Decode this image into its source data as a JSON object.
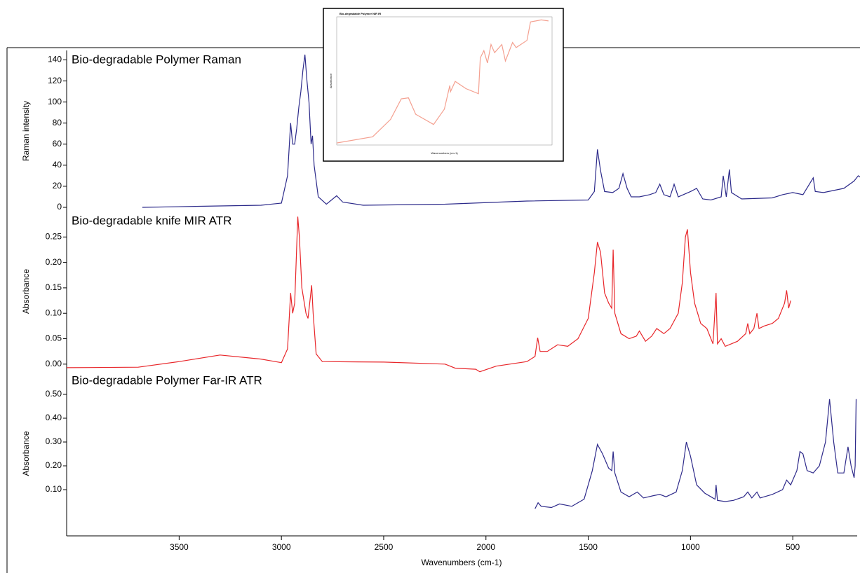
{
  "chart_data": [
    {
      "type": "line",
      "title": "Bio-degradable Polymer Raman",
      "y_label": "Raman intensity",
      "color": "#2c2a8a",
      "xlim": [
        4050,
        185
      ],
      "ylim": [
        -4,
        149
      ],
      "yticks": [
        0,
        20,
        40,
        60,
        80,
        100,
        120,
        140
      ],
      "x": [
        3680,
        3400,
        3100,
        3000,
        2970,
        2955,
        2945,
        2935,
        2925,
        2915,
        2905,
        2895,
        2885,
        2875,
        2865,
        2855,
        2848,
        2840,
        2820,
        2780,
        2730,
        2700,
        2600,
        2200,
        1800,
        1500,
        1470,
        1455,
        1440,
        1420,
        1380,
        1350,
        1330,
        1310,
        1290,
        1250,
        1200,
        1170,
        1150,
        1130,
        1100,
        1080,
        1060,
        1000,
        970,
        940,
        900,
        850,
        840,
        825,
        810,
        800,
        750,
        600,
        550,
        500,
        450,
        400,
        390,
        350,
        300,
        250,
        200,
        180,
        165,
        160,
        155
      ],
      "values": [
        0,
        1,
        2,
        4,
        30,
        80,
        60,
        60,
        75,
        95,
        110,
        130,
        145,
        120,
        100,
        60,
        68,
        40,
        10,
        3,
        11,
        5,
        2,
        3,
        6,
        7,
        15,
        55,
        35,
        15,
        14,
        18,
        32,
        18,
        10,
        10,
        12,
        14,
        22,
        12,
        10,
        22,
        10,
        15,
        18,
        8,
        7,
        10,
        30,
        10,
        36,
        14,
        8,
        9,
        12,
        14,
        12,
        28,
        15,
        14,
        16,
        18,
        25,
        30,
        28,
        30,
        -3
      ]
    },
    {
      "type": "line",
      "title": "Bio-degradable knife MIR ATR",
      "y_label": "Absorbance",
      "color": "#e8262a",
      "xlim": [
        4050,
        185
      ],
      "ylim": [
        -0.014,
        0.3
      ],
      "yticks": [
        {
          "value": 0,
          "label": "0.00"
        },
        {
          "value": 0.05,
          "label": "0.05"
        },
        {
          "value": 0.1,
          "label": "0.10"
        },
        {
          "value": 0.15,
          "label": "0.15"
        },
        {
          "value": 0.2,
          "label": "0.20"
        },
        {
          "value": 0.25,
          "label": "0.25"
        }
      ],
      "x": [
        4050,
        3700,
        3500,
        3300,
        3100,
        3000,
        2970,
        2955,
        2945,
        2935,
        2920,
        2912,
        2900,
        2880,
        2870,
        2852,
        2845,
        2830,
        2800,
        2500,
        2200,
        2150,
        2050,
        2030,
        1950,
        1800,
        1760,
        1747,
        1735,
        1700,
        1650,
        1600,
        1550,
        1500,
        1470,
        1455,
        1440,
        1420,
        1400,
        1385,
        1378,
        1370,
        1340,
        1300,
        1265,
        1250,
        1220,
        1190,
        1165,
        1130,
        1100,
        1060,
        1040,
        1025,
        1015,
        1000,
        980,
        950,
        920,
        890,
        875,
        868,
        850,
        830,
        800,
        770,
        730,
        720,
        710,
        690,
        675,
        665,
        640,
        600,
        570,
        540,
        530,
        520,
        510
      ],
      "values": [
        -0.007,
        -0.006,
        0.005,
        0.018,
        0.01,
        0.003,
        0.03,
        0.14,
        0.1,
        0.12,
        0.29,
        0.25,
        0.15,
        0.1,
        0.09,
        0.155,
        0.1,
        0.02,
        0.005,
        0.004,
        0,
        -0.008,
        -0.01,
        -0.015,
        -0.004,
        0.005,
        0.015,
        0.052,
        0.025,
        0.025,
        0.038,
        0.035,
        0.05,
        0.09,
        0.18,
        0.24,
        0.22,
        0.14,
        0.12,
        0.11,
        0.225,
        0.1,
        0.06,
        0.05,
        0.055,
        0.065,
        0.045,
        0.055,
        0.07,
        0.06,
        0.07,
        0.1,
        0.16,
        0.25,
        0.265,
        0.18,
        0.12,
        0.08,
        0.07,
        0.04,
        0.14,
        0.04,
        0.05,
        0.035,
        0.04,
        0.045,
        0.06,
        0.08,
        0.06,
        0.07,
        0.1,
        0.07,
        0.075,
        0.08,
        0.09,
        0.12,
        0.145,
        0.11,
        0.125
      ]
    },
    {
      "type": "line",
      "title": "Bio-degradable Polymer Far-IR ATR",
      "y_label": "Absorbance",
      "x_label": "Wavenumbers (cm-1)",
      "color": "#2e2a8a",
      "xlim": [
        4050,
        185
      ],
      "ylim": [
        -0.094,
        0.597
      ],
      "yticks": [
        {
          "value": 0.1,
          "label": "0.10"
        },
        {
          "value": 0.2,
          "label": "0.20"
        },
        {
          "value": 0.3,
          "label": "0.30"
        },
        {
          "value": 0.4,
          "label": "0.40"
        },
        {
          "value": 0.5,
          "label": "0.50"
        }
      ],
      "xticks": [
        3500,
        3000,
        2500,
        2000,
        1500,
        1000,
        500
      ],
      "x": [
        1760,
        1745,
        1730,
        1680,
        1640,
        1580,
        1520,
        1480,
        1455,
        1430,
        1400,
        1385,
        1378,
        1370,
        1340,
        1300,
        1260,
        1230,
        1180,
        1150,
        1120,
        1070,
        1040,
        1020,
        1000,
        970,
        930,
        900,
        880,
        875,
        868,
        830,
        790,
        740,
        720,
        700,
        675,
        660,
        600,
        550,
        530,
        510,
        480,
        465,
        450,
        430,
        400,
        370,
        340,
        320,
        300,
        280,
        250,
        230,
        215,
        200,
        195,
        190
      ],
      "values": [
        0.02,
        0.045,
        0.03,
        0.025,
        0.04,
        0.03,
        0.06,
        0.18,
        0.29,
        0.25,
        0.19,
        0.18,
        0.26,
        0.17,
        0.09,
        0.07,
        0.09,
        0.065,
        0.075,
        0.08,
        0.07,
        0.09,
        0.18,
        0.3,
        0.24,
        0.12,
        0.085,
        0.07,
        0.06,
        0.12,
        0.055,
        0.05,
        0.055,
        0.07,
        0.09,
        0.065,
        0.09,
        0.065,
        0.08,
        0.1,
        0.14,
        0.12,
        0.18,
        0.26,
        0.25,
        0.18,
        0.17,
        0.2,
        0.3,
        0.48,
        0.3,
        0.17,
        0.17,
        0.28,
        0.2,
        0.15,
        0.2,
        0.48
      ]
    },
    {
      "type": "line",
      "title": "Bio-degradable Polymer NIR IR",
      "y_label": "Absorbance",
      "x_label": "Wavenumbers (cm-1)",
      "color": "#f4a090",
      "xlim": [
        10000,
        4000
      ],
      "ylim": [
        0,
        1.25
      ],
      "x": [
        10000,
        9000,
        8500,
        8200,
        8000,
        7800,
        7300,
        7000,
        6850,
        6830,
        6700,
        6400,
        6050,
        6000,
        5900,
        5800,
        5700,
        5600,
        5400,
        5300,
        5100,
        5000,
        4700,
        4600,
        4300,
        4100
      ],
      "values": [
        0.02,
        0.08,
        0.25,
        0.45,
        0.46,
        0.3,
        0.2,
        0.35,
        0.58,
        0.52,
        0.62,
        0.55,
        0.5,
        0.85,
        0.92,
        0.8,
        0.98,
        0.9,
        0.98,
        0.82,
        1,
        0.95,
        1.02,
        1.2,
        1.22,
        1.21
      ]
    }
  ]
}
